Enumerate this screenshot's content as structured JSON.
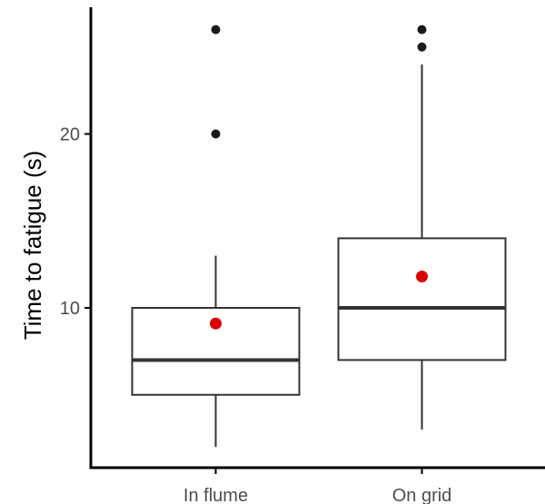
{
  "chart_data": {
    "type": "boxplot",
    "title": "",
    "xlabel": "",
    "ylabel": "Time to fatigue (s)",
    "ylim": [
      0,
      28
    ],
    "y_ticks": [
      10,
      20
    ],
    "grid": false,
    "categories": [
      "In flume",
      "On grid"
    ],
    "boxes": [
      {
        "category": "In flume",
        "q1": 5,
        "median": 7,
        "q3": 10,
        "whisker_low": 2,
        "whisker_high": 13,
        "mean": 9.1,
        "outliers": [
          20,
          26
        ]
      },
      {
        "category": "On grid",
        "q1": 7,
        "median": 10,
        "q3": 14,
        "whisker_low": 3,
        "whisker_high": 24,
        "mean": 11.8,
        "outliers": [
          25,
          26
        ]
      }
    ],
    "colors": {
      "box_stroke": "#333333",
      "median": "#333333",
      "outlier": "#1a1a1a",
      "mean": "#e00000",
      "axis": "#000000",
      "tick_label": "#4d4d4d"
    }
  }
}
